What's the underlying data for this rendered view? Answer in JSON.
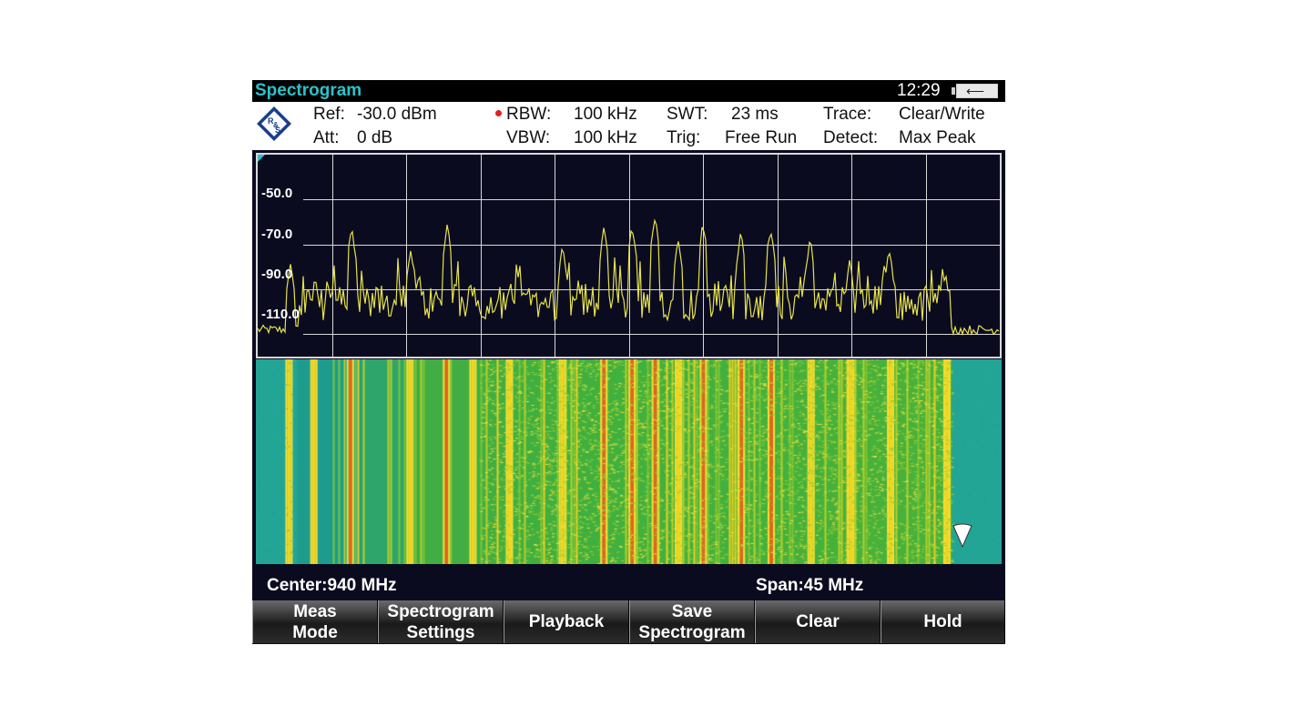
{
  "app": {
    "title": "Spectrogram",
    "clock": "12:29",
    "battery_icon": "battery-plug-icon",
    "logo_text": "R&S"
  },
  "settings": {
    "ref_label": "Ref:",
    "ref_value": "-30.0 dBm",
    "att_label": "Att:",
    "att_value": "0 dB",
    "rbw_label": "RBW:",
    "rbw_value": "100 kHz",
    "vbw_label": "VBW:",
    "vbw_value": "100 kHz",
    "swt_label": "SWT:",
    "swt_value": "23 ms",
    "trig_label": "Trig:",
    "trig_value": "Free Run",
    "trace_label": "Trace:",
    "trace_value": "Clear/Write",
    "detect_label": "Detect:",
    "detect_value": "Max Peak"
  },
  "status": {
    "center": "Center:940 MHz",
    "span": "Span:45 MHz"
  },
  "softkeys": [
    {
      "line1": "Meas",
      "line2": "Mode"
    },
    {
      "line1": "Spectrogram",
      "line2": "Settings"
    },
    {
      "line1": "Playback",
      "line2": ""
    },
    {
      "line1": "Save",
      "line2": "Spectrogram"
    },
    {
      "line1": "Clear",
      "line2": ""
    },
    {
      "line1": "Hold",
      "line2": ""
    }
  ],
  "colors": {
    "title": "#2ec1c9",
    "trace": "#e6e24a",
    "background": "#0b0b20",
    "spectrogram_floor": "#23a595"
  },
  "chart_data": {
    "type": "line",
    "y_ticks": [
      "-50.0",
      "-70.0",
      "-90.0",
      "-110.0"
    ],
    "ylim": [
      -120,
      -30
    ],
    "grid": true,
    "x": {
      "start_mhz": 917.5,
      "stop_mhz": 962.5
    },
    "peaks_mhz": [
      919.5,
      921.0,
      923.2,
      926.8,
      929.0,
      930.6,
      932.8,
      936.0,
      938.5,
      940.2,
      941.6,
      943.0,
      944.5,
      946.8,
      948.6,
      951.0,
      953.4,
      955.8,
      959.2
    ],
    "peak_levels_dbm": [
      -78,
      -84,
      -62,
      -72,
      -61,
      -88,
      -86,
      -70,
      -63,
      -62,
      -58,
      -67,
      -60,
      -64,
      -62,
      -67,
      -77,
      -72,
      -81
    ],
    "noise_floor_dbm": -108,
    "band_mhz": [
      920.0,
      959.5
    ]
  }
}
